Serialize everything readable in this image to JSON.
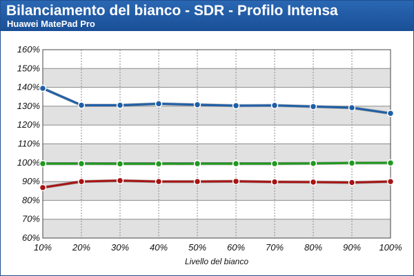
{
  "header": {
    "title": "Bilanciamento del bianco - SDR - Profilo Intensa",
    "subtitle": "Huawei MatePad Pro"
  },
  "chart_data": {
    "type": "line",
    "title": "Bilanciamento del bianco - SDR - Profilo Intensa",
    "subtitle": "Huawei MatePad Pro",
    "xlabel": "Livello del bianco",
    "ylabel": "",
    "categories": [
      "10%",
      "20%",
      "30%",
      "40%",
      "50%",
      "60%",
      "70%",
      "80%",
      "90%",
      "100%"
    ],
    "y_ticks": [
      "60%",
      "70%",
      "80%",
      "90%",
      "100%",
      "110%",
      "120%",
      "130%",
      "140%",
      "150%",
      "160%"
    ],
    "ylim": [
      60,
      160
    ],
    "grid": true,
    "legend": "none",
    "series": [
      {
        "color": "#1f5fa8",
        "values": [
          139.5,
          130.5,
          130.5,
          131.3,
          130.8,
          130.3,
          130.4,
          129.8,
          129.2,
          126.2
        ]
      },
      {
        "color": "#1f9a1f",
        "values": [
          99.5,
          99.5,
          99.4,
          99.4,
          99.5,
          99.5,
          99.5,
          99.6,
          99.8,
          99.9
        ]
      },
      {
        "color": "#a81414",
        "values": [
          86.8,
          90.0,
          90.5,
          90.0,
          90.0,
          90.1,
          89.8,
          89.7,
          89.5,
          90.0
        ]
      }
    ]
  }
}
